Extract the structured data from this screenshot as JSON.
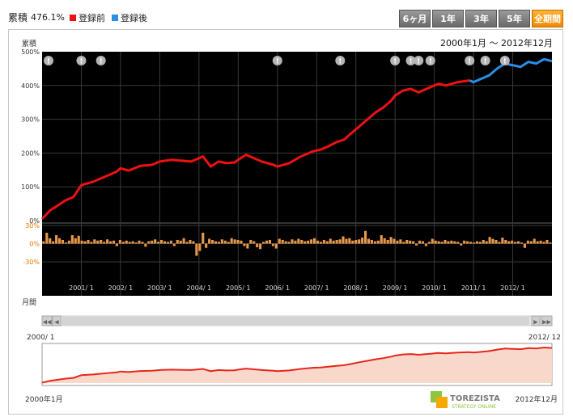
{
  "summary": {
    "label": "累積",
    "value": "476.1%",
    "legend": [
      {
        "name": "登録前",
        "color": "#ee1111"
      },
      {
        "name": "登録後",
        "color": "#2a8ee6"
      }
    ]
  },
  "tabs": [
    {
      "label": "6ヶ月",
      "active": false
    },
    {
      "label": "1年",
      "active": false
    },
    {
      "label": "3年",
      "active": false
    },
    {
      "label": "5年",
      "active": false
    },
    {
      "label": "全期間",
      "active": true
    }
  ],
  "date_range": "2000年1月 〜 2012年12月",
  "axis": {
    "top_label": "累積",
    "bottom_label": "月間",
    "cum_ticks": [
      "500%",
      "400%",
      "300%",
      "200%",
      "100%",
      "0%"
    ],
    "monthly_ticks": [
      "30%",
      "0%",
      "-30%"
    ],
    "x_ticks": [
      "2001/ 1",
      "2002/ 1",
      "2003/ 1",
      "2004/ 1",
      "2005/ 1",
      "2006/ 1",
      "2007/ 1",
      "2008/ 1",
      "2009/ 1",
      "2010/ 1",
      "2011/ 1",
      "2012/ 1"
    ]
  },
  "navigator": {
    "start_label": "2000/ 1",
    "end_label": "2012/ 12",
    "bottom_left": "2000年1月",
    "bottom_right": "2012年12月"
  },
  "brand": {
    "name": "TOREZISTA",
    "sub": "STRATEGY ONLINE"
  },
  "icons": {
    "alert_x": [
      2000.0,
      2001.0,
      2001.5,
      2006.0,
      2007.6,
      2009.0,
      2009.4,
      2009.6,
      2009.9,
      2010.9,
      2011.3,
      2011.8
    ]
  },
  "chart_data": {
    "type": "line",
    "xlim": [
      2000.0,
      2013.0
    ],
    "ylim": [
      0,
      500
    ],
    "monthly_ylim": [
      -30,
      30
    ],
    "series": [
      {
        "name": "登録前",
        "color": "#ee1111",
        "x": [
          2000.0,
          2000.2,
          2000.4,
          2000.6,
          2000.8,
          2001.0,
          2001.3,
          2001.6,
          2001.9,
          2002.0,
          2002.2,
          2002.5,
          2002.8,
          2003.0,
          2003.3,
          2003.5,
          2003.8,
          2004.0,
          2004.1,
          2004.3,
          2004.5,
          2004.7,
          2004.9,
          2005.0,
          2005.2,
          2005.4,
          2005.6,
          2005.9,
          2006.0,
          2006.3,
          2006.6,
          2006.9,
          2007.1,
          2007.3,
          2007.5,
          2007.7,
          2007.9,
          2008.1,
          2008.3,
          2008.5,
          2008.7,
          2008.9,
          2009.0,
          2009.2,
          2009.4,
          2009.6,
          2009.9,
          2010.1,
          2010.3,
          2010.6,
          2010.9
        ],
        "y": [
          5,
          30,
          45,
          60,
          70,
          105,
          115,
          130,
          145,
          155,
          148,
          162,
          165,
          175,
          180,
          178,
          175,
          185,
          190,
          160,
          175,
          170,
          172,
          180,
          195,
          185,
          175,
          165,
          160,
          170,
          190,
          205,
          210,
          220,
          232,
          240,
          260,
          280,
          300,
          320,
          335,
          355,
          370,
          385,
          390,
          380,
          395,
          405,
          400,
          410,
          415
        ]
      },
      {
        "name": "登録後",
        "color": "#2a8ee6",
        "x": [
          2010.9,
          2011.0,
          2011.2,
          2011.4,
          2011.6,
          2011.8,
          2012.0,
          2012.2,
          2012.4,
          2012.6,
          2012.8,
          2013.0
        ],
        "y": [
          415,
          410,
          420,
          430,
          450,
          465,
          460,
          455,
          470,
          465,
          478,
          472
        ]
      }
    ],
    "monthly": {
      "name": "月間",
      "color": "#e89848",
      "values": [
        4,
        18,
        9,
        4,
        14,
        9,
        6,
        2,
        5,
        14,
        9,
        13,
        5,
        4,
        6,
        3,
        7,
        5,
        6,
        3,
        7,
        4,
        5,
        -4,
        6,
        3,
        5,
        3,
        4,
        2,
        5,
        3,
        -5,
        4,
        5,
        7,
        3,
        6,
        4,
        3,
        5,
        -4,
        6,
        5,
        9,
        3,
        6,
        4,
        -20,
        -12,
        18,
        -7,
        8,
        6,
        4,
        3,
        7,
        5,
        3,
        9,
        7,
        6,
        5,
        -4,
        -8,
        6,
        4,
        -6,
        -9,
        3,
        5,
        6,
        -4,
        -8,
        8,
        6,
        4,
        3,
        7,
        5,
        8,
        6,
        4,
        5,
        7,
        9,
        5,
        3,
        6,
        4,
        8,
        5,
        6,
        7,
        12,
        8,
        9,
        5,
        6,
        7,
        10,
        21,
        8,
        6,
        4,
        5,
        14,
        9,
        6,
        11,
        8,
        5,
        7,
        3,
        6,
        5,
        4,
        -3,
        5,
        4,
        -4,
        3,
        8,
        5,
        4,
        3,
        6,
        4,
        5,
        4,
        3,
        -3,
        5,
        4,
        3,
        2,
        4,
        3,
        6,
        4,
        11,
        8,
        6,
        3,
        10,
        6,
        4,
        5,
        3,
        4,
        2,
        -7,
        5,
        4,
        8,
        4,
        5,
        3,
        6,
        2
      ]
    }
  }
}
